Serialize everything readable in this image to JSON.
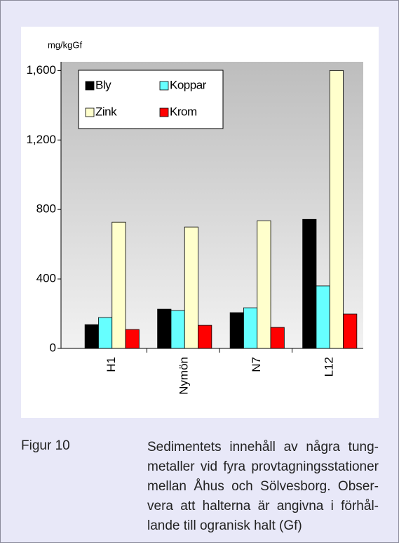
{
  "chart_data": {
    "type": "bar",
    "y_label": "mg/kgGf",
    "categories": [
      "H1",
      "Nymön",
      "N7",
      "L12"
    ],
    "series": [
      {
        "name": "Bly",
        "color": "#000000",
        "values": [
          137,
          226,
          206,
          743
        ]
      },
      {
        "name": "Koppar",
        "color": "#66ffff",
        "values": [
          178,
          218,
          234,
          360
        ]
      },
      {
        "name": "Zink",
        "color": "#ffffcc",
        "values": [
          727,
          699,
          735,
          1600
        ]
      },
      {
        "name": "Krom",
        "color": "#ff0000",
        "values": [
          109,
          133,
          121,
          198
        ]
      }
    ],
    "ylim": [
      0,
      1650
    ],
    "yticks": [
      0,
      400,
      800,
      {
        "value": 1200,
        "label": "1,200"
      },
      {
        "value": 1600,
        "label": "1,600"
      }
    ],
    "grid": false,
    "legend": "upper left"
  },
  "caption": {
    "label": "Figur 10",
    "lines": [
      "Sedimentets innehåll av några tung-",
      "metaller vid fyra provtagningsstationer",
      "mellan Åhus och Sölvesborg. Obser-",
      "vera att halterna är angivna i förhål-",
      "lande till ogranisk halt (Gf)"
    ]
  }
}
